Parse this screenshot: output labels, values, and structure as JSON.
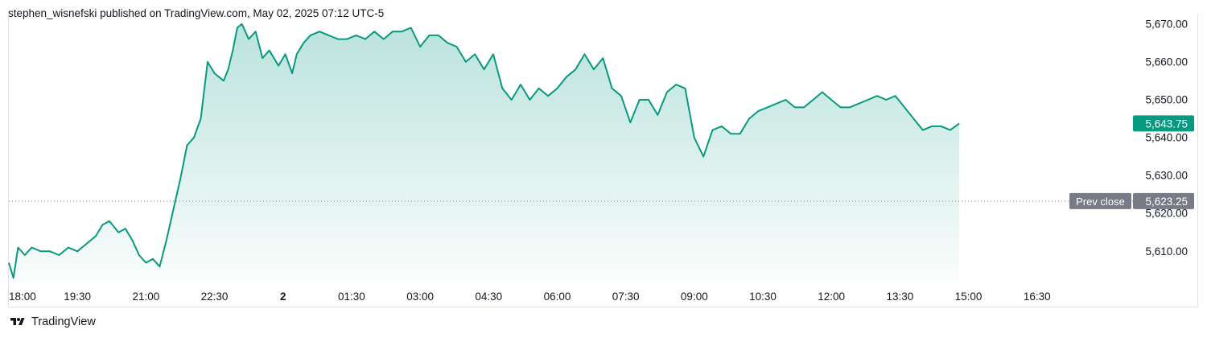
{
  "header": {
    "published_text": "stephen_wisnefski published on TradingView.com, May 02, 2025 07:12 UTC-5"
  },
  "footer": {
    "brand": "TradingView"
  },
  "colors": {
    "line": "#089981",
    "fill_top": "rgba(8,153,129,0.28)",
    "fill_bottom": "rgba(8,153,129,0.02)",
    "last_price_bg": "#089981",
    "prev_close_bg": "#787b86",
    "grid_text": "#131722"
  },
  "chart_data": {
    "type": "area",
    "y_ticks": [
      "5,670.00",
      "5,660.00",
      "5,650.00",
      "5,640.00",
      "5,630.00",
      "5,620.00",
      "5,610.00"
    ],
    "y_tick_values": [
      5670,
      5660,
      5650,
      5640,
      5630,
      5620,
      5610
    ],
    "x_ticks": [
      "18:00",
      "19:30",
      "21:00",
      "22:30",
      "2",
      "01:30",
      "03:00",
      "04:30",
      "06:00",
      "07:30",
      "09:00",
      "10:30",
      "12:00",
      "13:30",
      "15:00",
      "16:30"
    ],
    "ylim": [
      5602,
      5672.5
    ],
    "x_range_hours": [
      0,
      24.6
    ],
    "last_price_label": "5,643.75",
    "last_price": 5643.75,
    "prev_close_label": "Prev close",
    "prev_close_value_label": "5,623.25",
    "prev_close": 5623.25,
    "series": [
      {
        "x": [
          0,
          0.1,
          0.2,
          0.35,
          0.5,
          0.7,
          0.9,
          1.1,
          1.3,
          1.5,
          1.7,
          1.9,
          2.05,
          2.2,
          2.4,
          2.55,
          2.7,
          2.85,
          3,
          3.15,
          3.3,
          3.45,
          3.6,
          3.75,
          3.9,
          4.05,
          4.2,
          4.35,
          4.5,
          4.6,
          4.7,
          4.8,
          4.9,
          5.0,
          5.1,
          5.25,
          5.4,
          5.55,
          5.7,
          5.9,
          6.05,
          6.2,
          6.3,
          6.45,
          6.6,
          6.8,
          7.0,
          7.2,
          7.4,
          7.6,
          7.8,
          8.0,
          8.2,
          8.4,
          8.6,
          8.8,
          9.0,
          9.2,
          9.4,
          9.6,
          9.8,
          10.0,
          10.2,
          10.4,
          10.6,
          10.8,
          11.0,
          11.2,
          11.4,
          11.6,
          11.8,
          12.0,
          12.2,
          12.4,
          12.6,
          12.8,
          13.0,
          13.2,
          13.4,
          13.6,
          13.8,
          14.0,
          14.2,
          14.4,
          14.6,
          14.8,
          15.0,
          15.2,
          15.4,
          15.6,
          15.8,
          16.0,
          16.2,
          16.4,
          16.6,
          16.8,
          17.0,
          17.2,
          17.4,
          17.6,
          17.8,
          18.0,
          18.2,
          18.4,
          18.6,
          18.8,
          19.0,
          19.2,
          19.4,
          19.6,
          19.8,
          20.0,
          20.2,
          20.4,
          20.6,
          20.8
        ],
        "y": [
          5607,
          5603,
          5611,
          5609,
          5611,
          5610,
          5610,
          5609,
          5611,
          5610,
          5612,
          5614,
          5617,
          5618,
          5615,
          5616,
          5613,
          5609,
          5607,
          5608,
          5606,
          5613,
          5621,
          5629,
          5638,
          5640,
          5645,
          5660,
          5657,
          5656,
          5655,
          5658,
          5663,
          5669,
          5670,
          5666,
          5668,
          5661,
          5663,
          5659,
          5662,
          5657,
          5662,
          5665,
          5667,
          5668,
          5667,
          5666,
          5666,
          5667,
          5666,
          5668,
          5666,
          5668,
          5668,
          5669,
          5664,
          5667,
          5667,
          5665,
          5664,
          5660,
          5662,
          5658,
          5662,
          5653,
          5650,
          5654,
          5650,
          5653,
          5651,
          5653,
          5656,
          5658,
          5662,
          5658,
          5661,
          5653,
          5651,
          5644,
          5650,
          5650,
          5646,
          5652,
          5654,
          5653,
          5640,
          5635,
          5642,
          5643,
          5641,
          5641,
          5645,
          5647,
          5648,
          5649,
          5650,
          5648,
          5648,
          5650,
          5652,
          5650,
          5648,
          5648,
          5649,
          5650,
          5651,
          5650,
          5651,
          5648,
          5645,
          5642,
          5643,
          5643,
          5642,
          5643.75
        ]
      }
    ]
  }
}
